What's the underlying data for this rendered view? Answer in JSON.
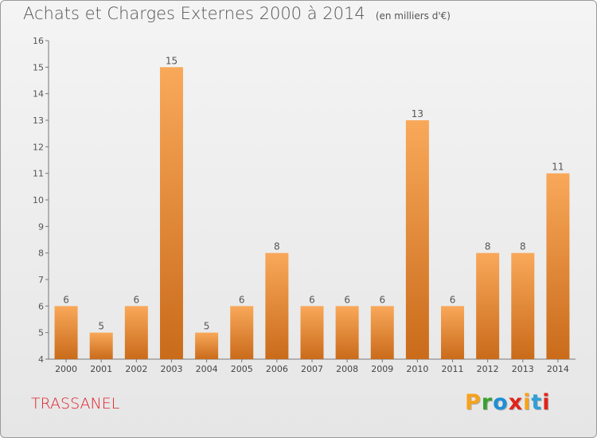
{
  "header": {
    "title": "Achats et Charges Externes 2000 à 2014",
    "unit": "(en milliers d'€)"
  },
  "footer": {
    "commune": "TRASSANEL",
    "logo_text": "Proxiti"
  },
  "colors": {
    "bar_light": "#f9a85a",
    "bar_dark": "#c96b1a",
    "commune": "#e0202a",
    "logo": [
      "#f7a21b",
      "#3aa02f",
      "#1f8fd6",
      "#e2231a",
      "#f7a21b",
      "#2f9fd6",
      "#e2231a"
    ]
  },
  "chart_data": {
    "type": "bar",
    "title": "Achats et Charges Externes 2000 à 2014",
    "ylabel": "",
    "xlabel": "",
    "categories": [
      "2000",
      "2001",
      "2002",
      "2003",
      "2004",
      "2005",
      "2006",
      "2007",
      "2008",
      "2009",
      "2010",
      "2011",
      "2012",
      "2013",
      "2014"
    ],
    "values": [
      6,
      5,
      6,
      15,
      5,
      6,
      8,
      6,
      6,
      6,
      13,
      6,
      8,
      8,
      11
    ],
    "ylim": [
      4,
      16
    ],
    "yticks": [
      4,
      5,
      6,
      7,
      8,
      9,
      10,
      11,
      12,
      13,
      14,
      15,
      16
    ],
    "grid": false,
    "data_labels": true
  }
}
